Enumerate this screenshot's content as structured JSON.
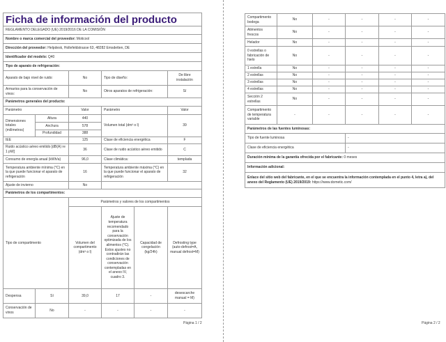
{
  "page1": {
    "title": "Ficha de información del producto",
    "regulation": "REGLAMENTO DELEGADO (UE) 2019/2016 DE LA COMISIÓN",
    "supplier_label": "Nombre o marca comercial del proveedor:",
    "supplier": "Moticool",
    "address_label": "Dirección del proveedor:",
    "address": "Helpdesk, Hollefeldstrasse 63, 48282 Emsdetten, DE",
    "model_label": "Identificador del modelo:",
    "model": "Q40",
    "type_heading": "Tipo de aparato de refrigeración:",
    "low_noise_label": "Aparato de bajo nivel de ruido:",
    "low_noise": "No",
    "design_label": "Tipo de diseño:",
    "design": "De libre instalación",
    "wine_label": "Armarios para la conservación de vinos:",
    "wine": "No",
    "other_label": "Otros aparatos de refrigeración:",
    "other": "Sí",
    "general_heading": "Parámetros generales del producto:",
    "h_param": "Parámetro",
    "h_value": "Valor",
    "dims_label": "Dimensiones totales (milímetros)",
    "height_label": "Altura",
    "height": "440",
    "width_label": "Anchura",
    "width": "578",
    "depth_label": "Profundidad",
    "depth": "388",
    "volume_label": "Volumen total (dm³ o l)",
    "volume": "39",
    "eei_label": "IEE",
    "eei": "125",
    "eclass_label": "Clase de eficiencia energética",
    "eclass": "F",
    "noise_label": "Ruido acústico aéreo emitido [dB(A) re 1 pW]",
    "noise": "36",
    "noise_class_label": "Clase de ruido acústico aéreo emitido",
    "noise_class": "C",
    "energy_label": "Consumo de energía anual (kWh/a)",
    "energy": "96,0",
    "climate_label": "Clase climática:",
    "climate": "templada",
    "tmin_label": "Temperatura ambiente mínima (°C) en la que puede funcionar el aparato de refrigeración",
    "tmin": "16",
    "tmax_label": "Temperatura ambiente máxima (°C) en la que puede funcionar el aparato de refrigeración",
    "tmax": "32",
    "winter_label": "Ajuste de invierno",
    "winter": "No",
    "comp_heading": "Parámetros de los compartimentos:",
    "comp_type_label": "Tipo de compartimento",
    "comp_values_label": "Parámetros y valores de los compartimentos",
    "comp_cols": [
      "Volumen del compartimento (dm³ o l)",
      "Ajuste de temperatura recomendado para la conservación optimizada de los alimentos (°C). Estos ajustes no contradirán las condiciones de conservación contempladas en el anexo IV, cuadro 3.",
      "Capacidad de congelación (kg/24h)",
      "Defrosting type (auto-defrost=A, manual defrost=M)"
    ],
    "rows": [
      {
        "name": "Despensa",
        "present": "Sí",
        "v": [
          "39,0",
          "17",
          "-",
          "desescarche manual = M)"
        ]
      },
      {
        "name": "Conservación de vinos",
        "present": "No",
        "v": [
          "-",
          "-",
          "-",
          "-"
        ]
      }
    ],
    "page_number": "Página 1 / 2"
  },
  "page2": {
    "rows": [
      {
        "name": "Compartimento bodega",
        "present": "No",
        "v": [
          "-",
          "-",
          "-",
          "-"
        ]
      },
      {
        "name": "Alimentos frescos",
        "present": "No",
        "v": [
          "-",
          "-",
          "-",
          "-"
        ]
      },
      {
        "name": "Helador",
        "present": "No",
        "v": [
          "-",
          "-",
          "-",
          "-"
        ]
      },
      {
        "name": "0 estrellas o fabricación de hielo",
        "present": "No",
        "v": [
          "-",
          "-",
          "-",
          "-"
        ]
      },
      {
        "name": "1 estrella",
        "present": "No",
        "v": [
          "-",
          "-",
          "-",
          "-"
        ]
      },
      {
        "name": "2 estrellas",
        "present": "No",
        "v": [
          "-",
          "-",
          "-",
          "-"
        ]
      },
      {
        "name": "3 estrellas",
        "present": "No",
        "v": [
          "-",
          "-",
          "-",
          "-"
        ]
      },
      {
        "name": "4 estrellas",
        "present": "No",
        "v": [
          "-",
          "-",
          "-",
          "-"
        ]
      },
      {
        "name": "Sección 2 estrellas",
        "present": "No",
        "v": [
          "-",
          "-",
          "-",
          "-"
        ]
      },
      {
        "name": "Compartimento de temperatura variable",
        "present": "-",
        "v": [
          "-",
          "-",
          "-",
          "-"
        ]
      }
    ],
    "light_heading": "Parámetros de las fuentes luminosas:",
    "light_type_label": "Tipo de fuente luminosa",
    "light_type": "-",
    "light_class_label": "Clase de eficiencia energética",
    "light_class": "-",
    "warranty_label": "Duración mínima de la garantía ofrecida por el fabricante:",
    "warranty": "0 meses",
    "info_label": "Información adicional:",
    "link_label": "Enlace del sitio web del fabricante, en el que se encuentra la información contemplada en el punto 4, letra a), del anexo del Reglamento (UE) 2019/2019:",
    "link": "https://www.dometic.com/",
    "page_number": "Página 2 / 2"
  }
}
